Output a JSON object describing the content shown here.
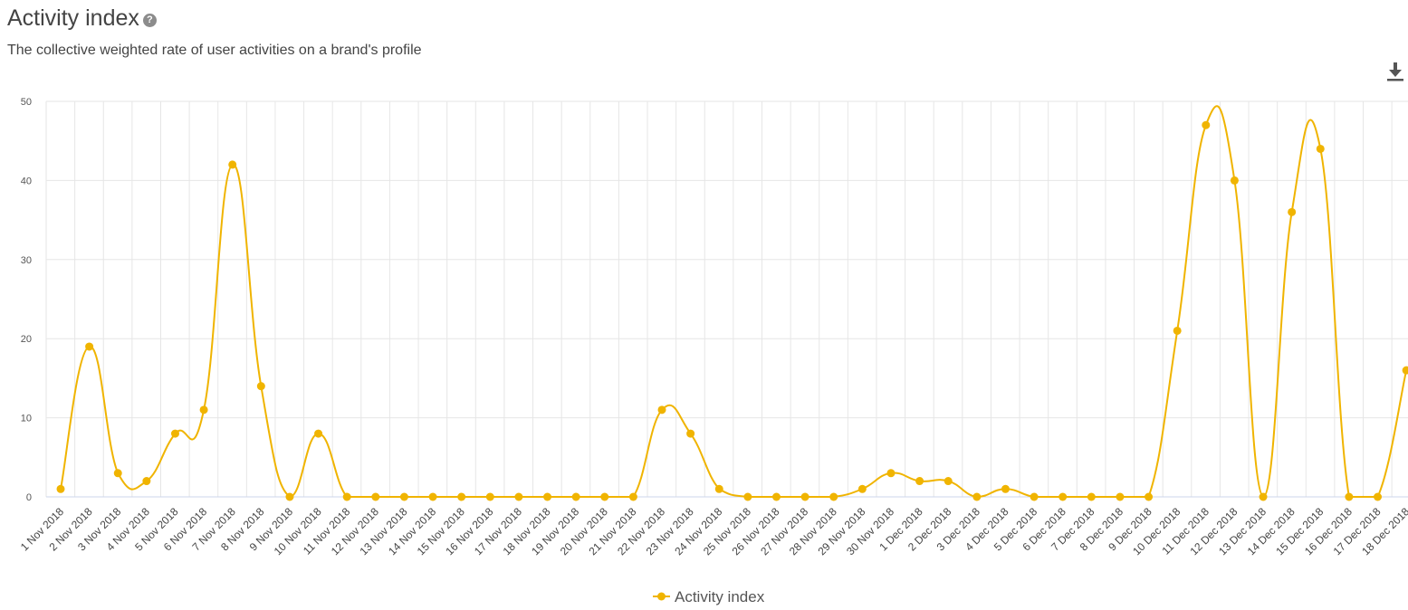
{
  "header": {
    "title": "Activity index",
    "help_icon": "question-circle-icon",
    "subtitle": "The collective weighted rate of user activities on a brand's profile",
    "download_icon": "download-icon"
  },
  "chart_data": {
    "type": "line",
    "smooth": true,
    "title": "Activity index",
    "xlabel": "",
    "ylabel": "",
    "ylim": [
      0,
      50
    ],
    "yticks": [
      0,
      10,
      20,
      30,
      40,
      50
    ],
    "grid": true,
    "legend": "bottom-center",
    "color": "#f0b400",
    "categories": [
      "1 Nov 2018",
      "2 Nov 2018",
      "3 Nov 2018",
      "4 Nov 2018",
      "5 Nov 2018",
      "6 Nov 2018",
      "7 Nov 2018",
      "8 Nov 2018",
      "9 Nov 2018",
      "10 Nov 2018",
      "11 Nov 2018",
      "12 Nov 2018",
      "13 Nov 2018",
      "14 Nov 2018",
      "15 Nov 2018",
      "16 Nov 2018",
      "17 Nov 2018",
      "18 Nov 2018",
      "19 Nov 2018",
      "20 Nov 2018",
      "21 Nov 2018",
      "22 Nov 2018",
      "23 Nov 2018",
      "24 Nov 2018",
      "25 Nov 2018",
      "26 Nov 2018",
      "27 Nov 2018",
      "28 Nov 2018",
      "29 Nov 2018",
      "30 Nov 2018",
      "1 Dec 2018",
      "2 Dec 2018",
      "3 Dec 2018",
      "4 Dec 2018",
      "5 Dec 2018",
      "6 Dec 2018",
      "7 Dec 2018",
      "8 Dec 2018",
      "9 Dec 2018",
      "10 Dec 2018",
      "11 Dec 2018",
      "12 Dec 2018",
      "13 Dec 2018",
      "14 Dec 2018",
      "15 Dec 2018",
      "16 Dec 2018",
      "17 Dec 2018",
      "18 Dec 2018"
    ],
    "series": [
      {
        "name": "Activity index",
        "values": [
          1,
          19,
          3,
          2,
          8,
          11,
          42,
          14,
          0,
          8,
          0,
          0,
          0,
          0,
          0,
          0,
          0,
          0,
          0,
          0,
          0,
          11,
          8,
          1,
          0,
          0,
          0,
          0,
          1,
          3,
          2,
          2,
          0,
          1,
          0,
          0,
          0,
          0,
          0,
          21,
          47,
          40,
          0,
          36,
          44,
          0,
          0,
          16
        ]
      }
    ]
  }
}
